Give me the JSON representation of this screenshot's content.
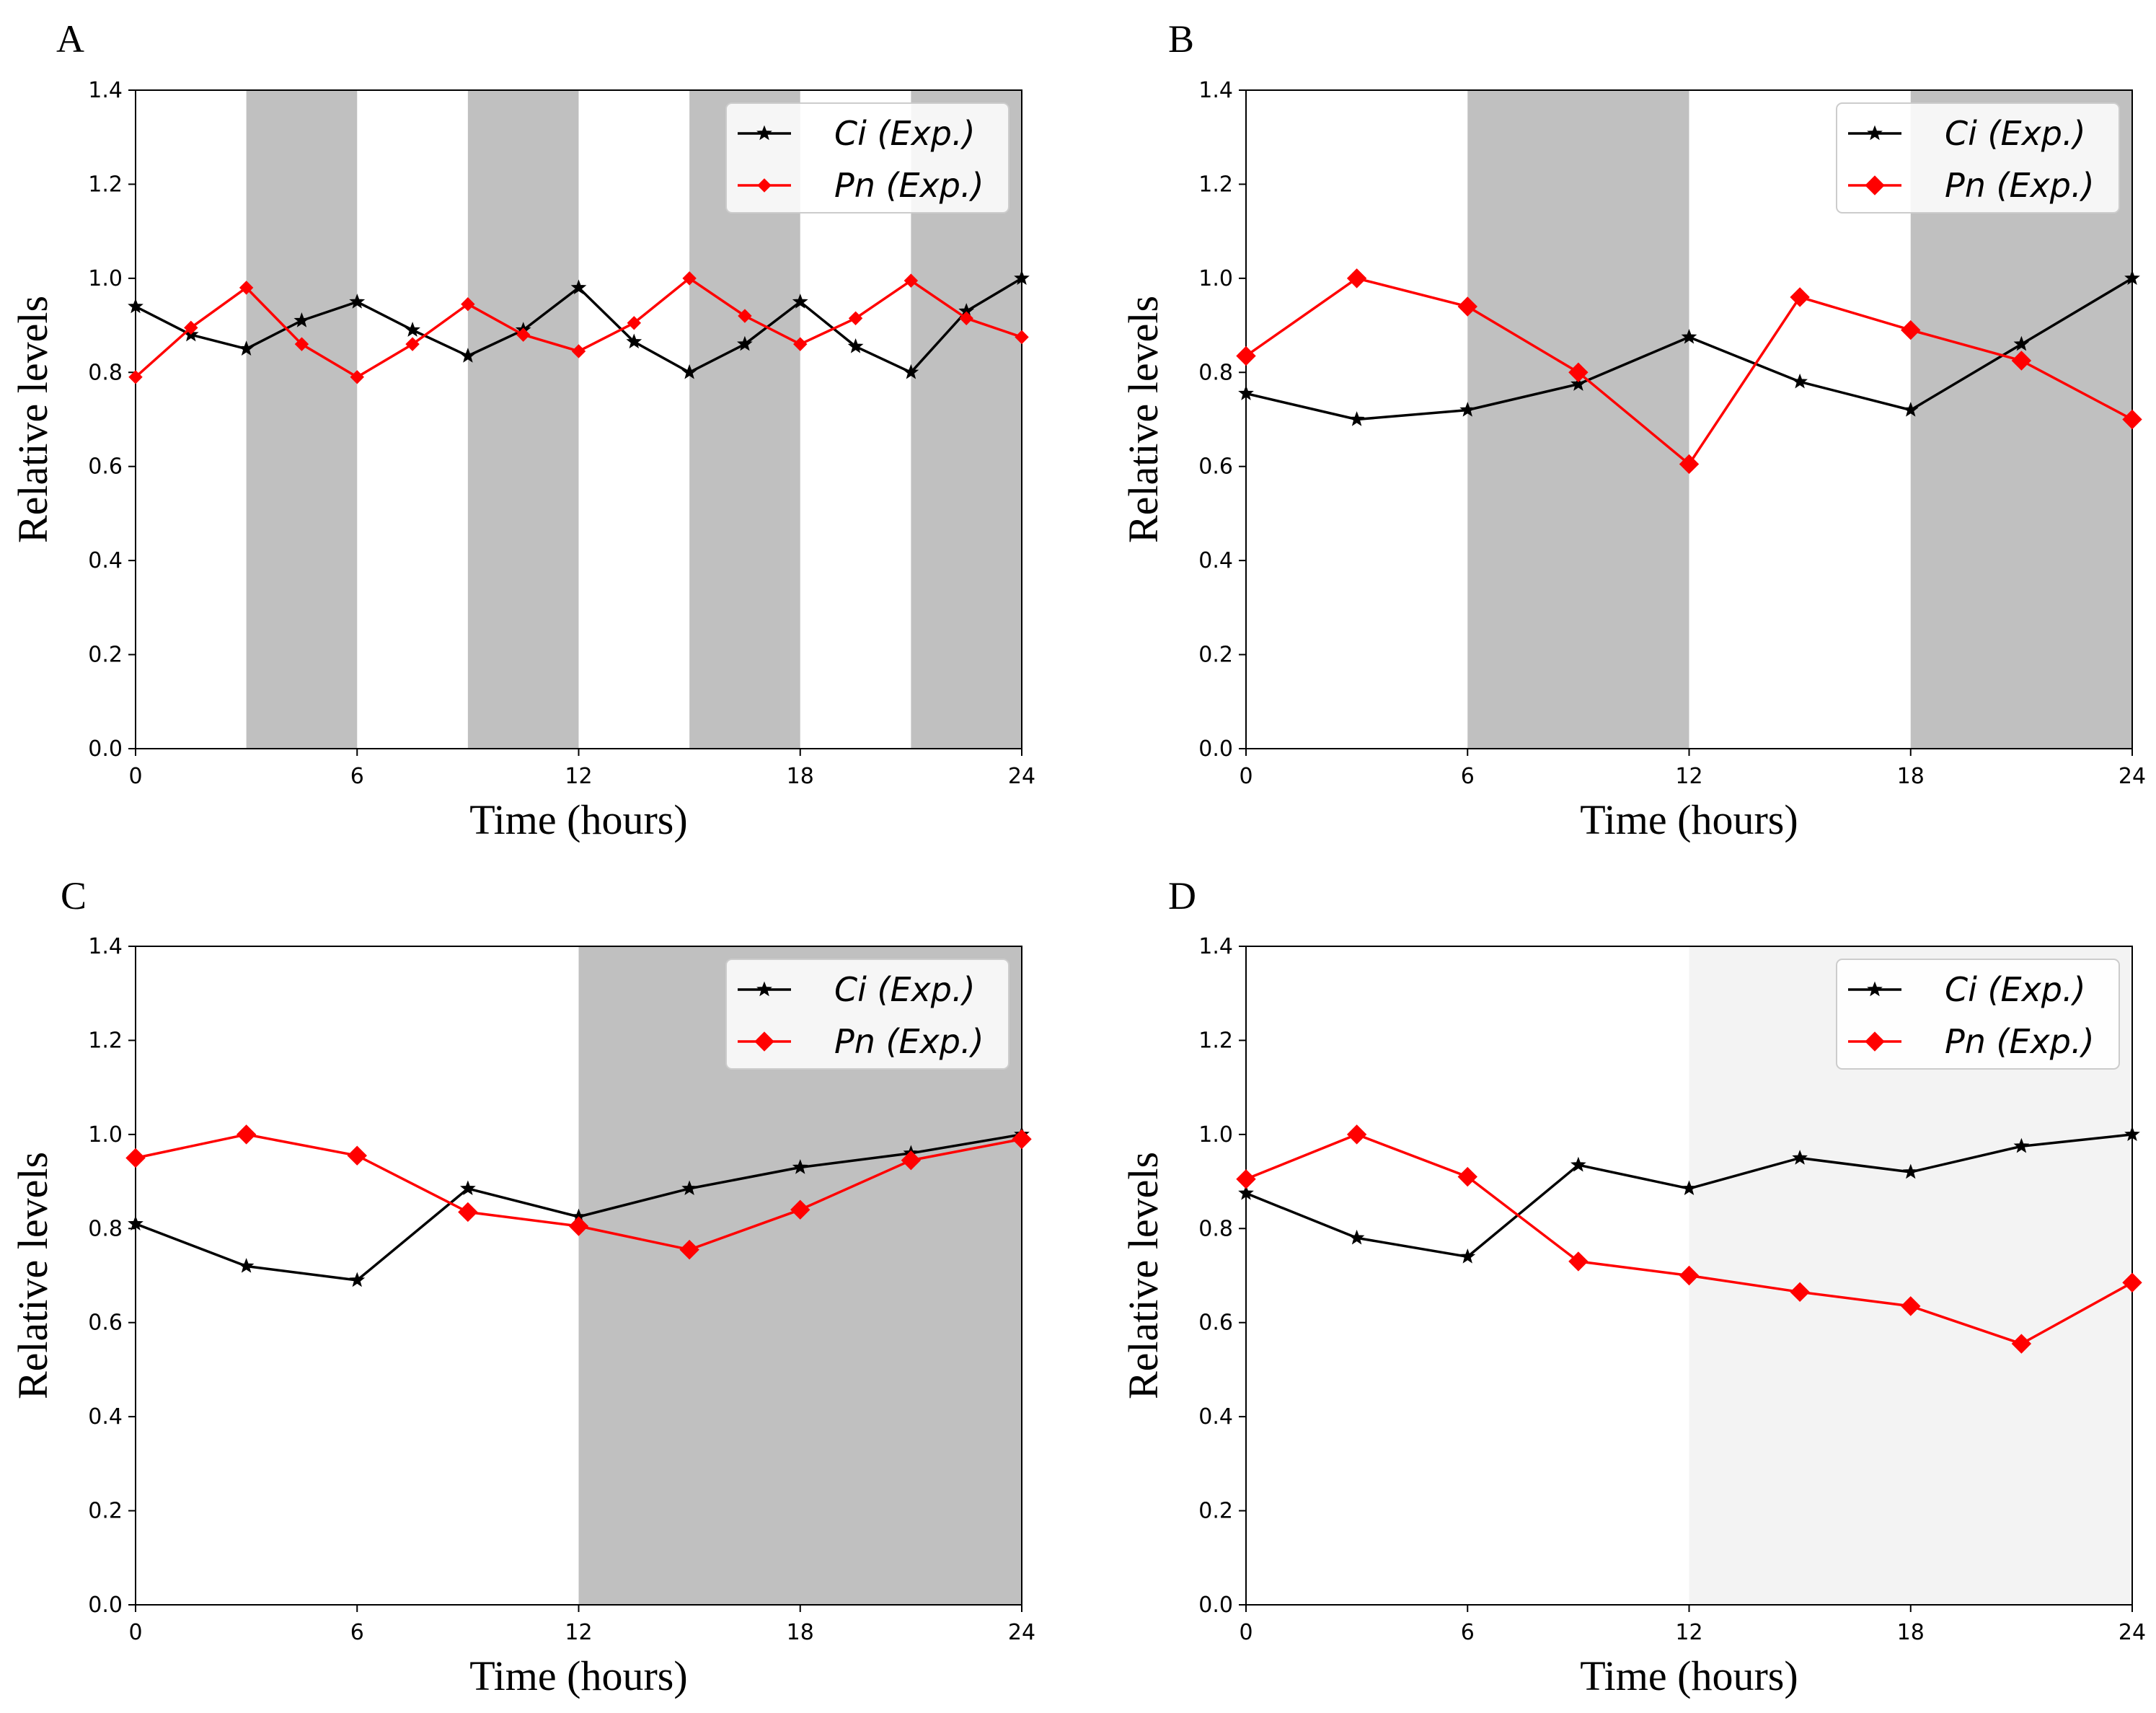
{
  "figure": {
    "colors": {
      "ci": "#000000",
      "pn": "#ff0000",
      "dark_shade": "#c0c0c0",
      "light_shade": "#f3f3f3"
    }
  },
  "chart_data": [
    {
      "panel": "A",
      "type": "line",
      "xlabel": "Time (hours)",
      "ylabel": "Relative levels",
      "xlim": [
        0,
        24
      ],
      "ylim": [
        0,
        1.4
      ],
      "xticks": [
        "0",
        "6",
        "12",
        "18",
        "24"
      ],
      "yticks": [
        "0.0",
        "0.2",
        "0.4",
        "0.6",
        "0.8",
        "1.0",
        "1.2",
        "1.4"
      ],
      "shaded_intervals": [
        {
          "start": 3,
          "end": 6,
          "shade": "dark"
        },
        {
          "start": 9,
          "end": 12,
          "shade": "dark"
        },
        {
          "start": 15,
          "end": 18,
          "shade": "dark"
        },
        {
          "start": 21,
          "end": 24,
          "shade": "dark"
        }
      ],
      "legend_position": "top-right",
      "series": [
        {
          "name": "Ci (Exp.)",
          "color": "#000000",
          "marker": "star",
          "marker_size": "small",
          "x": [
            0,
            1.5,
            3,
            4.5,
            6,
            7.5,
            9,
            10.5,
            12,
            13.5,
            15,
            16.5,
            18,
            19.5,
            21,
            22.5,
            24
          ],
          "values": [
            0.94,
            0.88,
            0.85,
            0.91,
            0.95,
            0.89,
            0.835,
            0.89,
            0.98,
            0.865,
            0.8,
            0.86,
            0.95,
            0.855,
            0.8,
            0.93,
            1.0
          ]
        },
        {
          "name": "Pn (Exp.)",
          "color": "#ff0000",
          "marker": "diamond",
          "marker_size": "small",
          "x": [
            0,
            1.5,
            3,
            4.5,
            6,
            7.5,
            9,
            10.5,
            12,
            13.5,
            15,
            16.5,
            18,
            19.5,
            21,
            22.5,
            24
          ],
          "values": [
            0.79,
            0.895,
            0.98,
            0.86,
            0.79,
            0.86,
            0.945,
            0.88,
            0.845,
            0.905,
            1.0,
            0.92,
            0.86,
            0.915,
            0.995,
            0.915,
            0.875
          ]
        }
      ]
    },
    {
      "panel": "B",
      "type": "line",
      "xlabel": "Time (hours)",
      "ylabel": "Relative levels",
      "xlim": [
        0,
        24
      ],
      "ylim": [
        0,
        1.4
      ],
      "xticks": [
        "0",
        "6",
        "12",
        "18",
        "24"
      ],
      "yticks": [
        "0.0",
        "0.2",
        "0.4",
        "0.6",
        "0.8",
        "1.0",
        "1.2",
        "1.4"
      ],
      "shaded_intervals": [
        {
          "start": 6,
          "end": 12,
          "shade": "dark"
        },
        {
          "start": 18,
          "end": 24,
          "shade": "dark"
        }
      ],
      "legend_position": "top-right",
      "series": [
        {
          "name": "Ci (Exp.)",
          "color": "#000000",
          "marker": "star",
          "marker_size": "small",
          "x": [
            0,
            3,
            6,
            9,
            12,
            15,
            18,
            21,
            24
          ],
          "values": [
            0.755,
            0.7,
            0.72,
            0.775,
            0.875,
            0.78,
            0.72,
            0.86,
            1.0
          ]
        },
        {
          "name": "Pn (Exp.)",
          "color": "#ff0000",
          "marker": "diamond",
          "marker_size": "large",
          "x": [
            0,
            3,
            6,
            9,
            12,
            15,
            18,
            21,
            24
          ],
          "values": [
            0.835,
            1.0,
            0.94,
            0.8,
            0.605,
            0.96,
            0.89,
            0.825,
            0.7
          ]
        }
      ]
    },
    {
      "panel": "C",
      "type": "line",
      "xlabel": "Time (hours)",
      "ylabel": "Relative levels",
      "xlim": [
        0,
        24
      ],
      "ylim": [
        0,
        1.4
      ],
      "xticks": [
        "0",
        "6",
        "12",
        "18",
        "24"
      ],
      "yticks": [
        "0.0",
        "0.2",
        "0.4",
        "0.6",
        "0.8",
        "1.0",
        "1.2",
        "1.4"
      ],
      "shaded_intervals": [
        {
          "start": 12,
          "end": 24,
          "shade": "dark"
        }
      ],
      "legend_position": "top-right",
      "series": [
        {
          "name": "Ci (Exp.)",
          "color": "#000000",
          "marker": "star",
          "marker_size": "small",
          "x": [
            0,
            3,
            6,
            9,
            12,
            15,
            18,
            21,
            24
          ],
          "values": [
            0.81,
            0.72,
            0.69,
            0.885,
            0.825,
            0.885,
            0.93,
            0.96,
            1.0
          ]
        },
        {
          "name": "Pn (Exp.)",
          "color": "#ff0000",
          "marker": "diamond",
          "marker_size": "large",
          "x": [
            0,
            3,
            6,
            9,
            12,
            15,
            18,
            21,
            24
          ],
          "values": [
            0.95,
            1.0,
            0.955,
            0.835,
            0.805,
            0.755,
            0.84,
            0.945,
            0.99
          ]
        }
      ]
    },
    {
      "panel": "D",
      "type": "line",
      "xlabel": "Time (hours)",
      "ylabel": "Relative levels",
      "xlim": [
        0,
        24
      ],
      "ylim": [
        0,
        1.4
      ],
      "xticks": [
        "0",
        "6",
        "12",
        "18",
        "24"
      ],
      "yticks": [
        "0.0",
        "0.2",
        "0.4",
        "0.6",
        "0.8",
        "1.0",
        "1.2",
        "1.4"
      ],
      "shaded_intervals": [
        {
          "start": 12,
          "end": 24,
          "shade": "light"
        }
      ],
      "legend_position": "top-right",
      "series": [
        {
          "name": "Ci (Exp.)",
          "color": "#000000",
          "marker": "star",
          "marker_size": "small",
          "x": [
            0,
            3,
            6,
            9,
            12,
            15,
            18,
            21,
            24
          ],
          "values": [
            0.875,
            0.78,
            0.74,
            0.935,
            0.885,
            0.95,
            0.92,
            0.975,
            1.0
          ]
        },
        {
          "name": "Pn (Exp.)",
          "color": "#ff0000",
          "marker": "diamond",
          "marker_size": "large",
          "x": [
            0,
            3,
            6,
            9,
            12,
            15,
            18,
            21,
            24
          ],
          "values": [
            0.905,
            1.0,
            0.91,
            0.73,
            0.7,
            0.665,
            0.635,
            0.555,
            0.685
          ]
        }
      ]
    }
  ]
}
